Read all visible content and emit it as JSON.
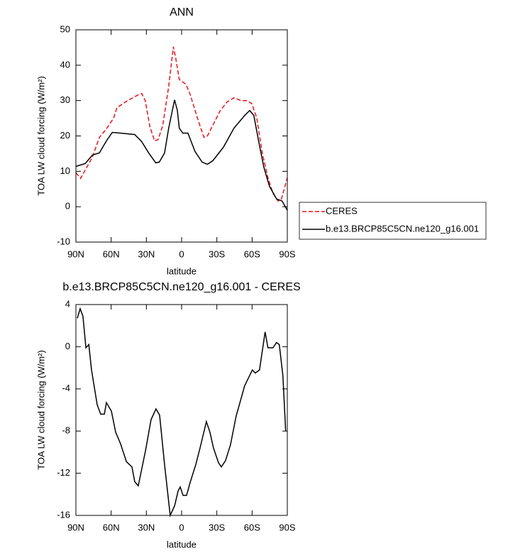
{
  "chart_data": [
    {
      "type": "line",
      "title": "ANN",
      "xlabel": "latitude",
      "ylabel": "TOA LW cloud forcing (W/m²)",
      "xlim": [
        90,
        -90
      ],
      "ylim": [
        -10,
        50
      ],
      "xticks": [
        {
          "value": 90,
          "label": "90N"
        },
        {
          "value": 60,
          "label": "60N"
        },
        {
          "value": 30,
          "label": "30N"
        },
        0,
        {
          "value": -30,
          "label": "30S"
        },
        {
          "value": -60,
          "label": "60S"
        },
        {
          "value": -90,
          "label": "90S"
        }
      ],
      "yticks": [
        -10,
        0,
        10,
        20,
        30,
        40,
        50
      ],
      "legend": "right",
      "series": [
        {
          "name": "CERES",
          "color": "#e8141b",
          "linestyle": "dashed",
          "x": [
            90,
            86,
            76,
            70,
            64,
            58,
            55,
            46,
            37,
            34,
            31,
            27,
            23,
            20,
            16,
            11,
            7,
            5,
            2,
            -3.6,
            -7,
            -14.5,
            -19,
            -22,
            -26.6,
            -32.6,
            -38.6,
            -44.6,
            -50.6,
            -55.4,
            -59.7,
            -63.9,
            -68.7,
            -73.5,
            -77.8,
            -82,
            -85,
            -88,
            -90
          ],
          "values": [
            9.6,
            8,
            14,
            19.6,
            22,
            25,
            28,
            30,
            31.6,
            32,
            30,
            22.6,
            18.6,
            19,
            23,
            34,
            45.2,
            42,
            36,
            34.6,
            32,
            24,
            19.6,
            20,
            23,
            27,
            29.6,
            30.8,
            30,
            30,
            29.2,
            25.2,
            15.2,
            8.2,
            3.8,
            1.6,
            2.2,
            5.8,
            8.2
          ]
        },
        {
          "name": "b.e13.BRCP85C5CN.ne120_g16.001",
          "color": "#000000",
          "linestyle": "solid",
          "x": [
            90,
            82,
            76,
            70,
            64,
            59,
            52,
            40,
            34,
            28,
            22,
            19,
            14.5,
            11,
            8.5,
            6,
            3.6,
            2,
            -1,
            -5.4,
            -11.4,
            -17.5,
            -22,
            -26.6,
            -35.6,
            -44.6,
            -53.7,
            -58,
            -61.5,
            -65.8,
            -70,
            -74.8,
            -80.8,
            -85.6,
            -90
          ],
          "values": [
            11.4,
            12.2,
            14.6,
            15.2,
            18.6,
            21,
            20.8,
            20.4,
            18.4,
            15.2,
            12.4,
            12.6,
            15.2,
            22.2,
            26.2,
            30.2,
            27.2,
            22.2,
            20.8,
            20.8,
            15.6,
            12.6,
            12,
            13,
            16.8,
            22.2,
            25.8,
            27.2,
            25.8,
            18.2,
            11.2,
            5.8,
            2.2,
            1.6,
            -1
          ]
        }
      ]
    },
    {
      "type": "line",
      "title": "b.e13.BRCP85C5CN.ne120_g16.001 - CERES",
      "xlabel": "latitude",
      "ylabel": "TOA LW cloud forcing (W/m²)",
      "xlim": [
        90,
        -90
      ],
      "ylim": [
        -16,
        4
      ],
      "xticks": [
        {
          "value": 90,
          "label": "90N"
        },
        {
          "value": 60,
          "label": "60N"
        },
        {
          "value": 30,
          "label": "30N"
        },
        0,
        {
          "value": -30,
          "label": "30S"
        },
        {
          "value": -60,
          "label": "60S"
        },
        {
          "value": -90,
          "label": "90S"
        }
      ],
      "yticks": [
        -16,
        -12,
        -8,
        -4,
        0,
        4
      ],
      "series": [
        {
          "color": "#000000",
          "linestyle": "solid",
          "x": [
            88.8,
            86.4,
            84,
            81.5,
            79,
            76.7,
            71.9,
            68.9,
            65.8,
            64,
            59.8,
            56.2,
            52,
            47,
            42.3,
            39.9,
            36.9,
            30.8,
            26,
            21.8,
            18.7,
            14.5,
            9.7,
            6,
            3,
            1.2,
            -1.2,
            -4.2,
            -7.2,
            -12,
            -15.7,
            -21.1,
            -24.1,
            -27.1,
            -31.4,
            -33.8,
            -37.4,
            -41.6,
            -46.4,
            -53.7,
            -60.3,
            -62.7,
            -66.3,
            -71.1,
            -73.5,
            -77.8,
            -80.8,
            -83.2,
            -86.2,
            -88.6
          ],
          "values": [
            2.7,
            3.6,
            2.9,
            -0.1,
            0.2,
            -2.2,
            -5.5,
            -6.4,
            -6.4,
            -5.3,
            -6.1,
            -8.1,
            -9.2,
            -10.9,
            -11.4,
            -12.8,
            -13.2,
            -9.9,
            -6.9,
            -5.9,
            -6.5,
            -11.2,
            -16,
            -15.1,
            -13.7,
            -13.3,
            -14.1,
            -14.1,
            -12.9,
            -11.2,
            -9.6,
            -7.1,
            -8.1,
            -9.6,
            -11,
            -11.4,
            -10.8,
            -9.3,
            -6.6,
            -3.7,
            -2.2,
            -2.5,
            -2.2,
            1.4,
            -0.1,
            -0.1,
            0.4,
            0.2,
            -2.7,
            -8
          ]
        }
      ]
    }
  ]
}
